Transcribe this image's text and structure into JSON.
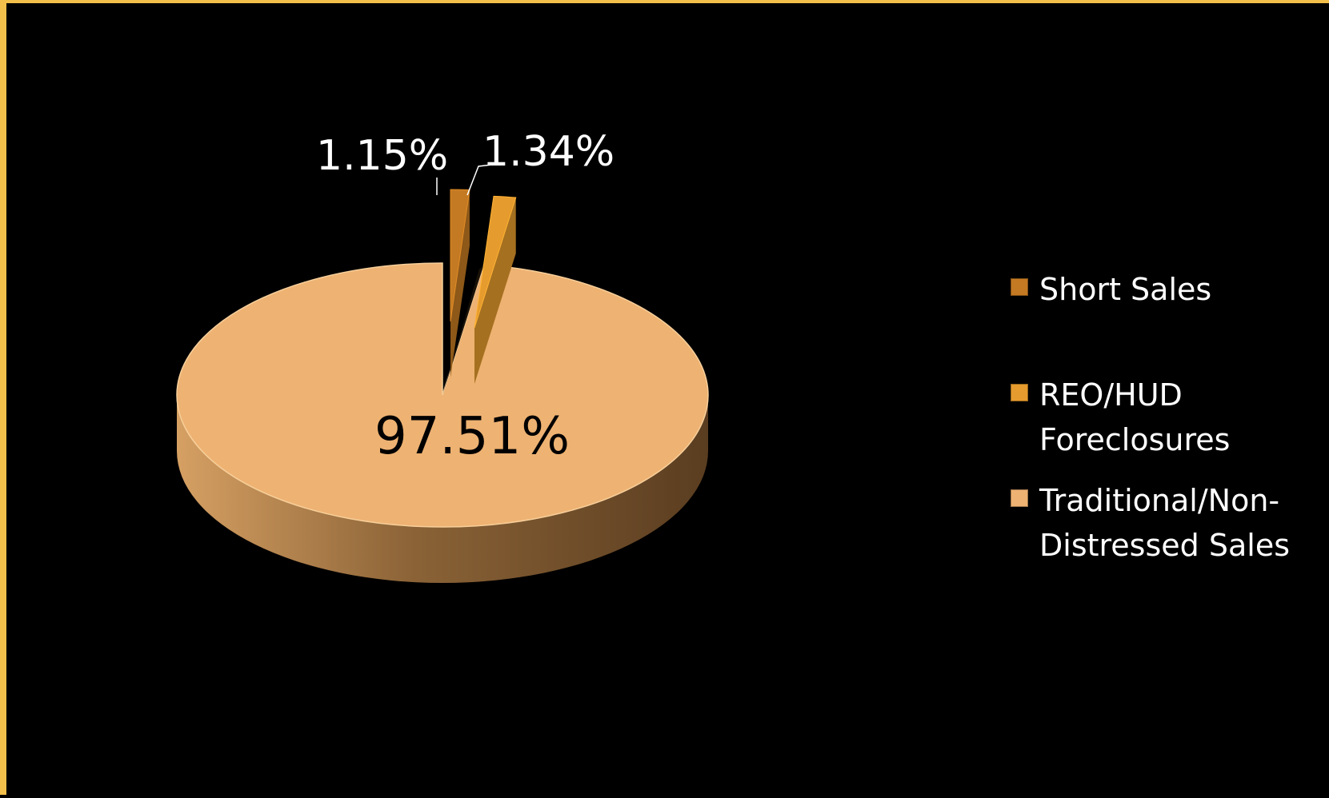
{
  "chart_data": {
    "type": "pie",
    "title": "",
    "categories": [
      "Short Sales",
      "REO/HUD Foreclosures",
      "Traditional/Non-Distressed Sales"
    ],
    "values": [
      1.15,
      1.34,
      97.51
    ],
    "value_labels": [
      "1.15%",
      "1.34%",
      "97.51%"
    ],
    "units": "%",
    "legend_position": "right",
    "colors": [
      "#c47a22",
      "#e59b2d",
      "#eeb272"
    ],
    "style": "3d-exploded"
  }
}
